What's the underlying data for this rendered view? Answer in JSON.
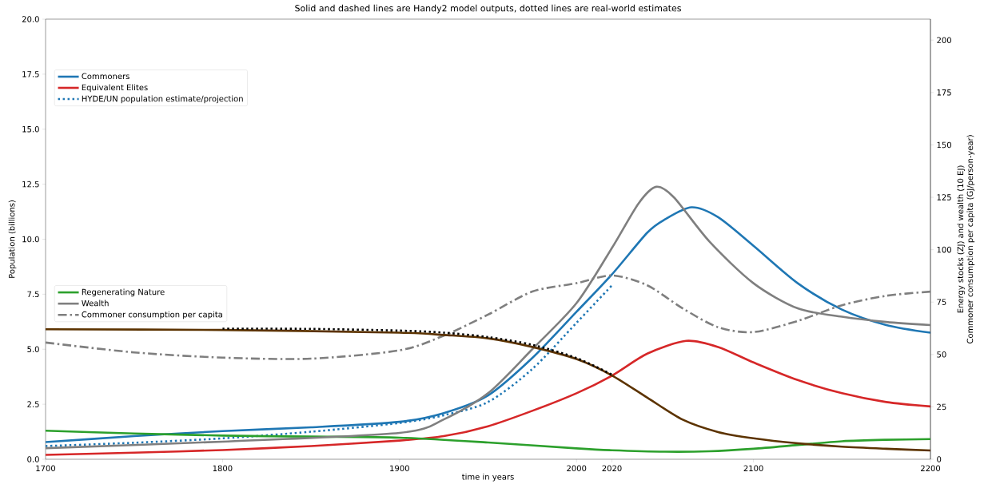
{
  "chart_data": {
    "type": "line",
    "title": "Solid and dashed lines are Handy2 model outputs, dotted lines are real-world estimates",
    "xlabel": "time in years",
    "ylabel": "Population (billions)",
    "y2label": [
      "Energy stocks (ZJ) and wealth (10 EJ)",
      "Commoner consumption per capita (GJ/person-year)"
    ],
    "xlim": [
      1700,
      2200
    ],
    "xticks": [
      1700,
      1800,
      1900,
      2000,
      2020,
      2100,
      2200
    ],
    "ylim": [
      0,
      20
    ],
    "yticks": [
      {
        "value": 0,
        "label": "0.0"
      },
      2.5,
      {
        "value": 5,
        "label": "5.0"
      },
      7.5,
      {
        "value": 10,
        "label": "10.0"
      },
      12.5,
      {
        "value": 15,
        "label": "15.0"
      },
      17.5,
      {
        "value": 20,
        "label": "20.0"
      }
    ],
    "y2lim": [
      0,
      210
    ],
    "y2ticks": [
      0,
      25,
      50,
      75,
      100,
      125,
      150,
      175,
      200
    ],
    "grid": false,
    "legend": "left",
    "marker": "none",
    "series": [
      {
        "name": "Commoners",
        "color": "#1f77b4",
        "line_style": "solid",
        "x": [
          1700,
          1750,
          1800,
          1850,
          1900,
          1925,
          1950,
          1975,
          2000,
          2020,
          2040,
          2050,
          2065,
          2080,
          2100,
          2125,
          2150,
          2175,
          2200
        ],
        "values": [
          0.78,
          1.05,
          1.28,
          1.45,
          1.7,
          2.1,
          2.9,
          4.6,
          6.7,
          8.4,
          10.3,
          10.9,
          11.45,
          11.0,
          9.7,
          8.0,
          6.8,
          6.1,
          5.75
        ]
      },
      {
        "name": "Equivalent Elites",
        "color": "#d62728",
        "line_style": "solid",
        "x": [
          1700,
          1750,
          1800,
          1850,
          1900,
          1925,
          1950,
          1975,
          2000,
          2020,
          2040,
          2062,
          2080,
          2100,
          2125,
          2150,
          2175,
          2200
        ],
        "values": [
          0.2,
          0.3,
          0.42,
          0.6,
          0.85,
          1.05,
          1.5,
          2.2,
          3.0,
          3.8,
          4.8,
          5.38,
          5.1,
          4.4,
          3.6,
          3.0,
          2.6,
          2.4
        ]
      },
      {
        "name": "HYDE/UN population estimate/projection",
        "color": "#1f77b4",
        "line_style": "dotted",
        "x": [
          1700,
          1750,
          1800,
          1850,
          1900,
          1925,
          1950,
          1975,
          2000,
          2020
        ],
        "values": [
          0.6,
          0.75,
          0.95,
          1.25,
          1.65,
          2.0,
          2.6,
          4.1,
          6.2,
          7.9
        ]
      },
      {
        "name": "Regenerating Nature",
        "color": "#2ca02c",
        "line_style": "solid",
        "axis": "y2",
        "x": [
          1700,
          1750,
          1800,
          1850,
          1900,
          1950,
          2000,
          2020,
          2050,
          2075,
          2100,
          2125,
          2150,
          2175,
          2200
        ],
        "values": [
          13.6,
          12.3,
          11.3,
          10.8,
          10.3,
          8.0,
          5.2,
          4.3,
          3.6,
          3.8,
          5,
          6.8,
          8.6,
          9.3,
          9.6
        ]
      },
      {
        "name": "Wealth",
        "color": "#7f7f7f",
        "line_style": "solid",
        "axis": "y2",
        "x": [
          1700,
          1800,
          1900,
          1925,
          1950,
          1975,
          2000,
          2020,
          2035,
          2045,
          2055,
          2075,
          2100,
          2125,
          2150,
          2175,
          2200
        ],
        "values": [
          5.3,
          8.4,
          12.6,
          19,
          31.5,
          52.5,
          74.5,
          100.8,
          122,
          130,
          125,
          104,
          84,
          72,
          68,
          65.5,
          64
        ]
      },
      {
        "name": "Commoner consumption per capita",
        "color": "#7f7f7f",
        "line_style": "dashed",
        "axis": "y2",
        "x": [
          1700,
          1750,
          1800,
          1850,
          1900,
          1925,
          1950,
          1975,
          2000,
          2020,
          2040,
          2060,
          2080,
          2100,
          2125,
          2150,
          2175,
          2200
        ],
        "values": [
          55.7,
          51,
          48.5,
          48,
          52,
          59,
          69,
          80,
          84,
          87.7,
          83,
          72,
          63,
          60.7,
          66,
          73.5,
          78,
          80
        ]
      },
      {
        "color": "#5c3300",
        "line_style": "solid",
        "axis": "y2",
        "x": [
          1700,
          1800,
          1900,
          1925,
          1950,
          1975,
          2000,
          2020,
          2040,
          2060,
          2080,
          2100,
          2125,
          2150,
          2175,
          2200
        ],
        "values": [
          62,
          61.7,
          60.4,
          59.3,
          57.7,
          53.6,
          47.8,
          40,
          29.4,
          18.9,
          13,
          10,
          7.6,
          6,
          5,
          4.2
        ]
      },
      {
        "color": "#000000",
        "line_style": "dotted",
        "axis": "y2",
        "x": [
          1800,
          1850,
          1900,
          1925,
          1950,
          1975,
          2000,
          2020
        ],
        "values": [
          62.3,
          62.2,
          61.4,
          60.4,
          58.3,
          54.6,
          48.3,
          40.4
        ]
      }
    ]
  }
}
